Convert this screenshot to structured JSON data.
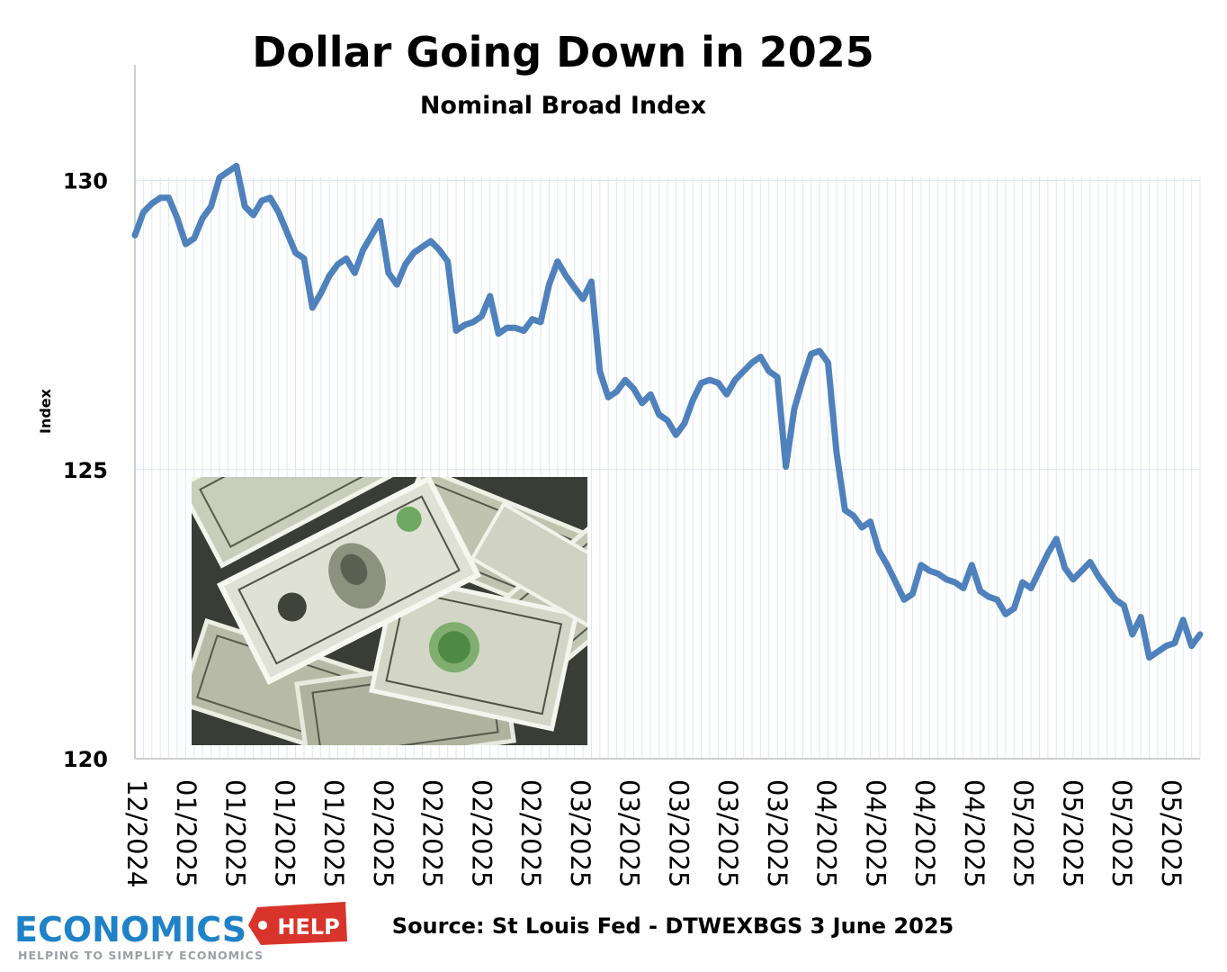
{
  "chart_data": {
    "type": "line",
    "title": "Dollar Going Down in 2025",
    "subtitle": "Nominal Broad Index",
    "ylabel": "Index",
    "xlabel": "",
    "ylim": [
      120,
      132
    ],
    "y_ticks": [
      120,
      125,
      130
    ],
    "grid": "horizontal and vertical",
    "x_tick_labels": [
      "12/2024",
      "01/2025",
      "01/2025",
      "01/2025",
      "01/2025",
      "02/2025",
      "02/2025",
      "02/2025",
      "02/2025",
      "03/2025",
      "03/2025",
      "03/2025",
      "03/2025",
      "03/2025",
      "04/2025",
      "04/2025",
      "04/2025",
      "04/2025",
      "05/2025",
      "05/2025",
      "05/2025",
      "05/2025"
    ],
    "series": [
      {
        "name": "",
        "color": "#4f81bd",
        "values": [
          129.05,
          129.45,
          129.6,
          129.7,
          129.7,
          129.35,
          128.9,
          129.0,
          129.35,
          129.55,
          130.05,
          130.15,
          130.25,
          129.55,
          129.4,
          129.65,
          129.7,
          129.45,
          129.1,
          128.75,
          128.65,
          127.8,
          128.05,
          128.35,
          128.55,
          128.65,
          128.4,
          128.8,
          129.05,
          129.3,
          128.4,
          128.2,
          128.55,
          128.75,
          128.85,
          128.95,
          128.8,
          128.6,
          127.4,
          127.5,
          127.55,
          127.65,
          128.0,
          127.35,
          127.45,
          127.45,
          127.4,
          127.6,
          127.55,
          128.2,
          128.6,
          128.35,
          128.15,
          127.95,
          128.25,
          126.7,
          126.25,
          126.35,
          126.55,
          126.4,
          126.15,
          126.3,
          125.95,
          125.85,
          125.6,
          125.8,
          126.2,
          126.5,
          126.55,
          126.5,
          126.3,
          126.55,
          126.7,
          126.85,
          126.95,
          126.7,
          126.6,
          125.05,
          126.05,
          126.55,
          127.0,
          127.05,
          126.85,
          125.3,
          124.3,
          124.2,
          124.0,
          124.1,
          123.6,
          123.35,
          123.05,
          122.75,
          122.85,
          123.35,
          123.25,
          123.2,
          123.1,
          123.05,
          122.95,
          123.35,
          122.9,
          122.8,
          122.75,
          122.5,
          122.6,
          123.05,
          122.95,
          123.25,
          123.55,
          123.8,
          123.3,
          123.1,
          123.25,
          123.4,
          123.15,
          122.95,
          122.75,
          122.65,
          122.15,
          122.45,
          121.75,
          121.85,
          121.95,
          122.0,
          122.4,
          121.95,
          122.15
        ]
      }
    ]
  },
  "source_text": "Source: St Louis Fed - DTWEXBGS 3 June 2025",
  "logo": {
    "main": "ECONOMICS",
    "tag": "HELP",
    "tagline": "HELPING TO SIMPLIFY ECONOMICS"
  },
  "photo": {
    "description_icon": "dollar-bills-photo-icon"
  }
}
